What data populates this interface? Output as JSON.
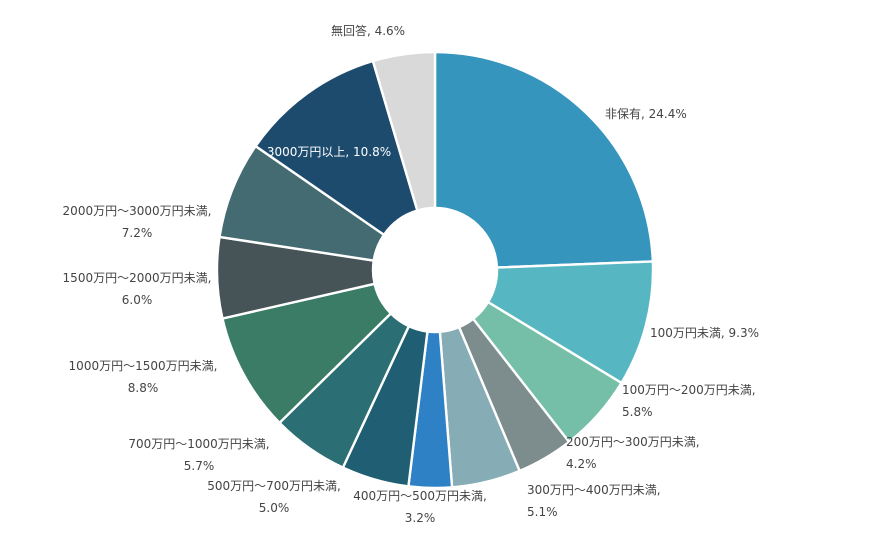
{
  "chart_data": {
    "type": "pie",
    "variant": "donut",
    "start": "top",
    "direction": "clockwise",
    "categories": [
      "非保有",
      "100万円未満",
      "100万円～200万円未満",
      "200万円～300万円未満",
      "300万円～400万円未満",
      "400万円～500万円未満",
      "500万円～700万円未満",
      "700万円～1000万円未満",
      "1000万円～1500万円未満",
      "1500万円～2000万円未満",
      "2000万円～3000万円未満",
      "3000万円以上",
      "無回答"
    ],
    "values": [
      24.4,
      9.3,
      5.8,
      4.2,
      5.1,
      3.2,
      5.0,
      5.7,
      8.8,
      6.0,
      7.2,
      10.8,
      4.6
    ],
    "value_labels": [
      "24.4%",
      "9.3%",
      "5.8%",
      "4.2%",
      "5.1%",
      "3.2%",
      "5.0%",
      "5.7%",
      "8.8%",
      "6.0%",
      "7.2%",
      "10.8%",
      "4.6%"
    ],
    "colors": [
      "#3595bd",
      "#56b6c2",
      "#75bea7",
      "#7d8c8c",
      "#86adb5",
      "#2f81c6",
      "#1f5e73",
      "#2b6e73",
      "#3a7c66",
      "#465457",
      "#456b72",
      "#1d4b6e",
      "#d9d9d9"
    ],
    "title": "",
    "legend": "none"
  }
}
